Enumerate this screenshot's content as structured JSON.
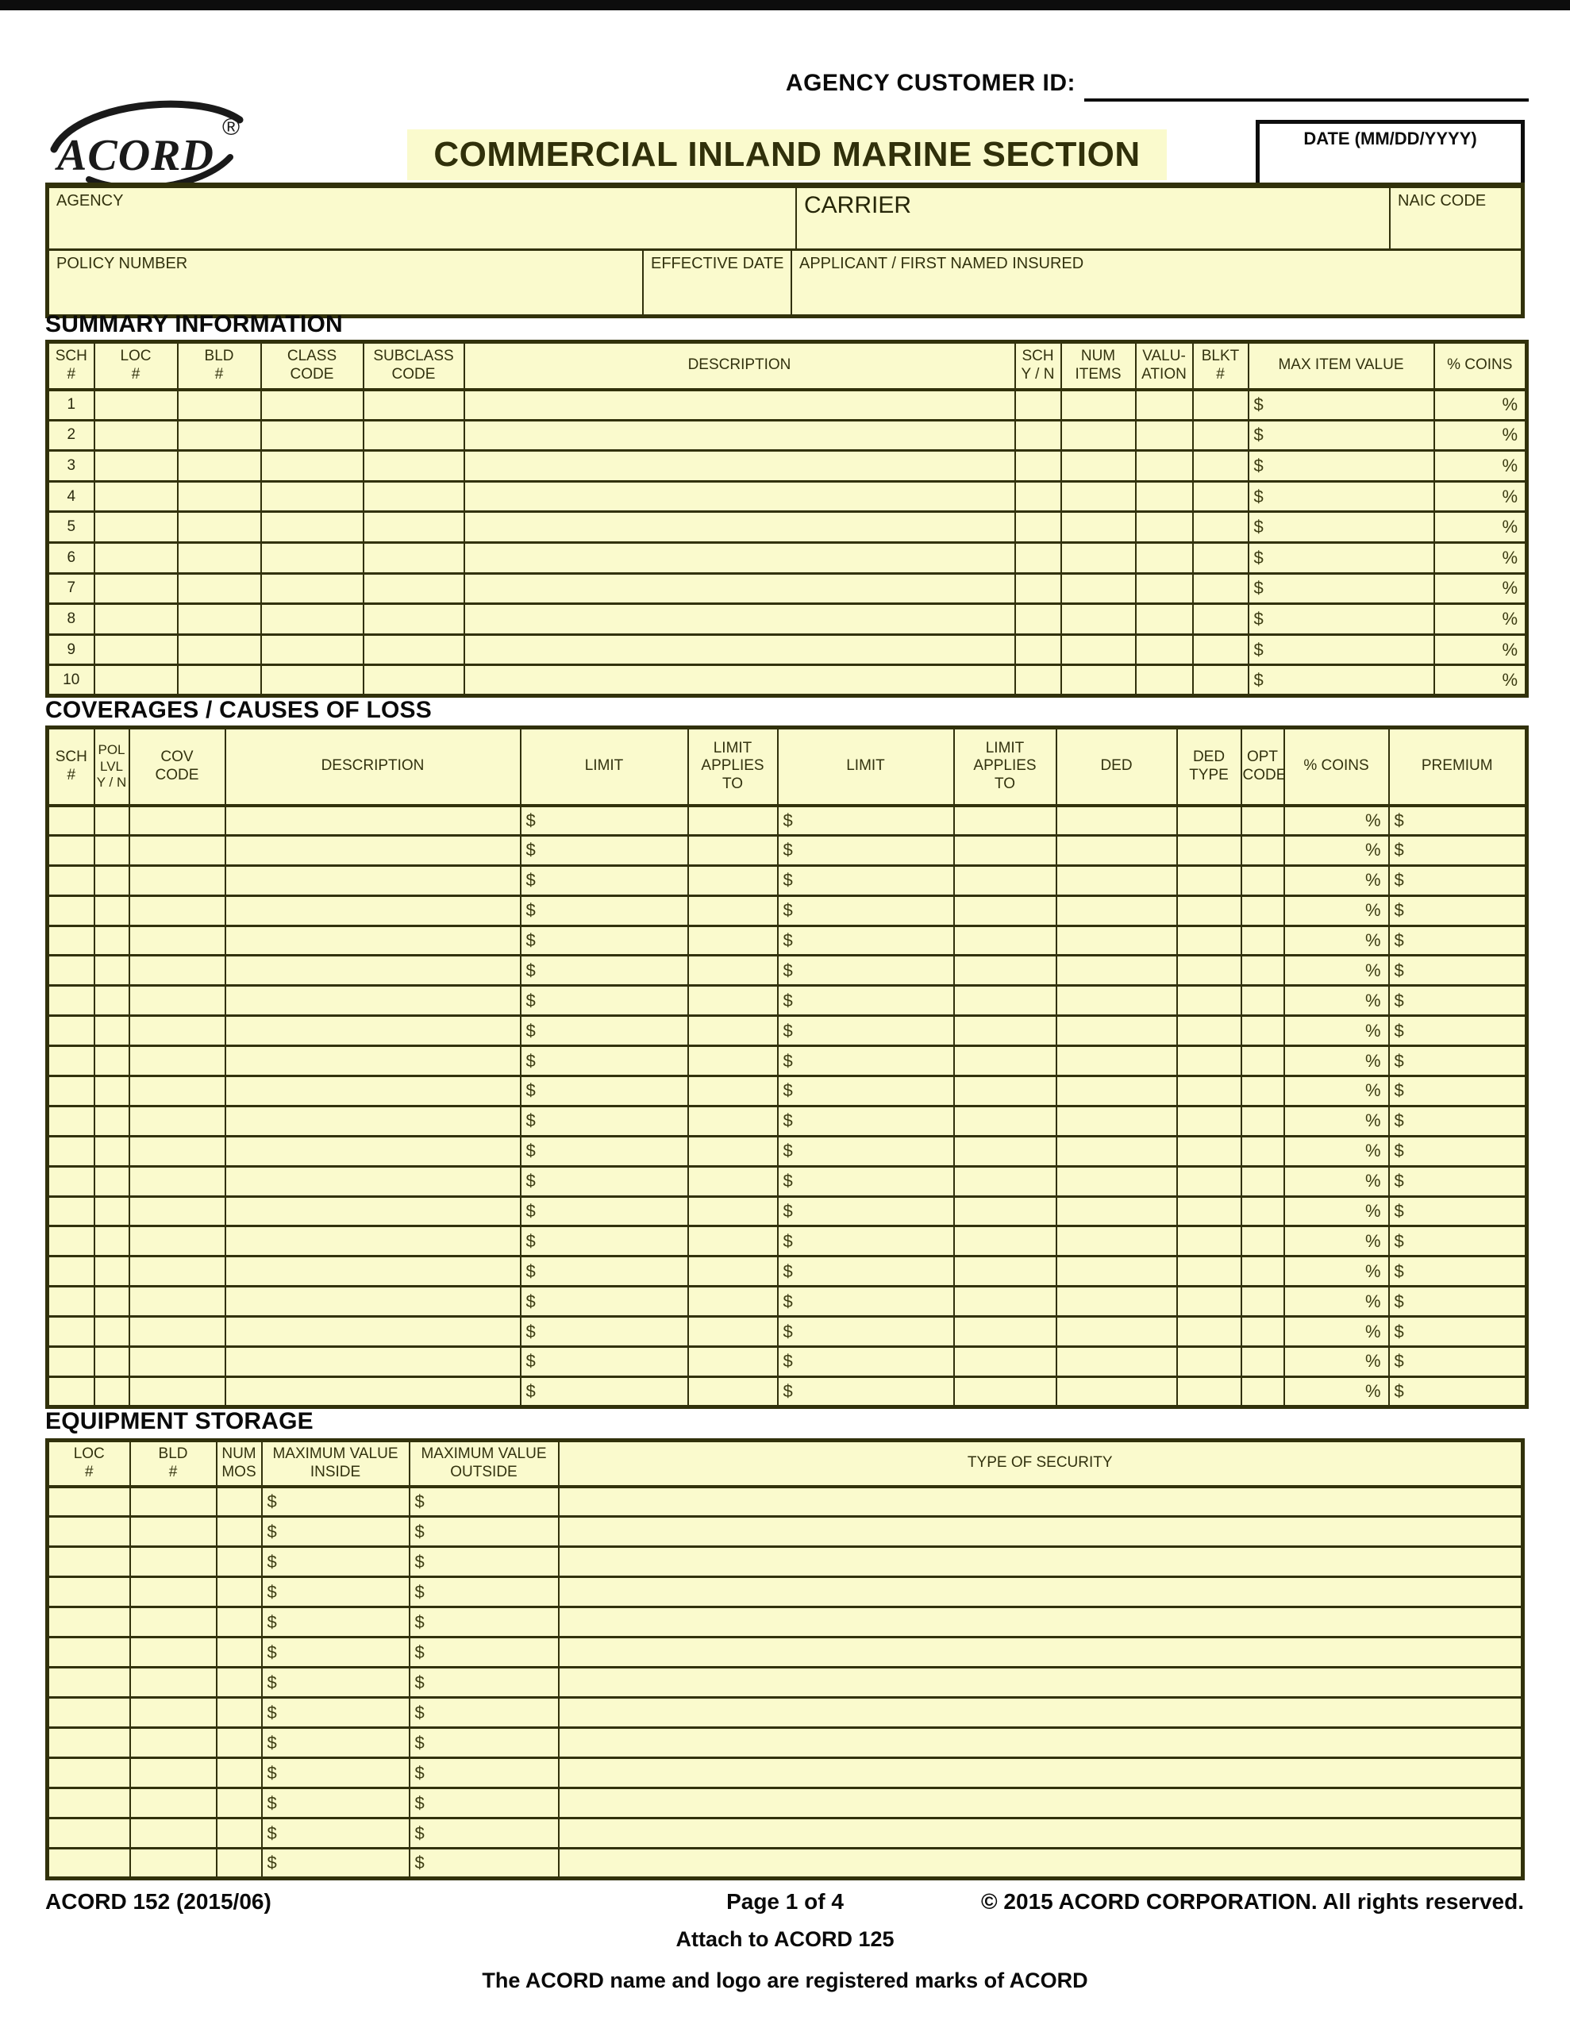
{
  "symbols": {
    "dollar": "$",
    "percent": "%"
  },
  "top": {
    "agency_customer_id_label": "AGENCY CUSTOMER ID:",
    "logo_text": "ACORD",
    "registered_symbol": "®",
    "title": "COMMERCIAL INLAND MARINE SECTION",
    "date_label": "DATE (MM/DD/YYYY)"
  },
  "header_fields": {
    "agency": "AGENCY",
    "carrier": "CARRIER",
    "naic_code": "NAIC CODE",
    "policy_number": "POLICY NUMBER",
    "effective_date": "EFFECTIVE DATE",
    "applicant": "APPLICANT / FIRST NAMED INSURED"
  },
  "summary": {
    "title": "SUMMARY INFORMATION",
    "header": [
      [
        "SCH",
        "#"
      ],
      [
        "LOC",
        "#"
      ],
      [
        "BLD",
        "#"
      ],
      [
        "CLASS",
        "CODE"
      ],
      [
        "SUBCLASS",
        "CODE"
      ],
      [
        "DESCRIPTION"
      ],
      [
        "SCH",
        "Y / N"
      ],
      [
        "NUM",
        "ITEMS"
      ],
      [
        "VALU-",
        "ATION"
      ],
      [
        "BLKT",
        "#"
      ],
      [
        "MAX ITEM VALUE"
      ],
      [
        "% COINS"
      ]
    ],
    "row_numbers": [
      "1",
      "2",
      "3",
      "4",
      "5",
      "6",
      "7",
      "8",
      "9",
      "10"
    ],
    "dollar_columns": [
      10
    ],
    "percent_columns": [
      11
    ]
  },
  "coverages": {
    "title": "COVERAGES / CAUSES OF LOSS",
    "header": [
      [
        "SCH",
        "#"
      ],
      [
        "POL",
        "LVL",
        "Y / N"
      ],
      [
        "COV",
        "CODE"
      ],
      [
        "DESCRIPTION"
      ],
      [
        "LIMIT"
      ],
      [
        "LIMIT",
        "APPLIES",
        "TO"
      ],
      [
        "LIMIT"
      ],
      [
        "LIMIT",
        "APPLIES",
        "TO"
      ],
      [
        "DED"
      ],
      [
        "DED",
        "TYPE"
      ],
      [
        "OPT",
        "CODE"
      ],
      [
        "% COINS"
      ],
      [
        "PREMIUM"
      ]
    ],
    "row_count": 20,
    "dollar_columns": [
      4,
      6,
      12
    ],
    "percent_columns": [
      11
    ]
  },
  "equipment": {
    "title": "EQUIPMENT STORAGE",
    "header": [
      [
        "LOC",
        "#"
      ],
      [
        "BLD",
        "#"
      ],
      [
        "NUM",
        "MOS"
      ],
      [
        "MAXIMUM VALUE",
        "INSIDE"
      ],
      [
        "MAXIMUM VALUE",
        "OUTSIDE"
      ],
      [
        "TYPE OF SECURITY"
      ]
    ],
    "row_count": 13,
    "dollar_columns": [
      3,
      4
    ],
    "percent_columns": []
  },
  "footer": {
    "form_code": "ACORD 152 (2015/06)",
    "page_info": "Page 1 of 4",
    "copyright": "© 2015 ACORD CORPORATION.  All rights reserved.",
    "attach_note": "Attach to ACORD 125",
    "trademark_note": "The ACORD name and logo are registered marks of ACORD"
  },
  "colors": {
    "cell_fill": "#FAFACD",
    "grid_border": "#31310B",
    "label_text": "#3C3C12",
    "ink_black": "#0D0D0D"
  }
}
